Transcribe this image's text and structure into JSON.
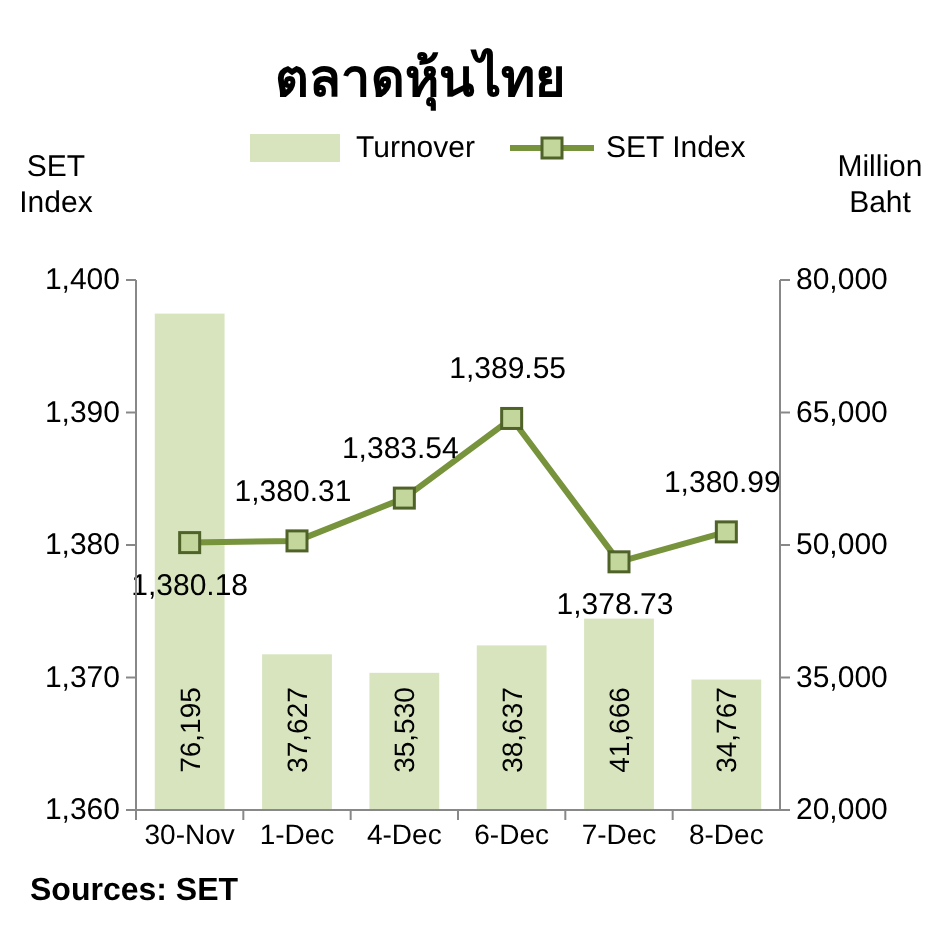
{
  "chart_data": {
    "type": "bar",
    "title": "ตลาดหุ้นไทย",
    "ylabel": "SET Index",
    "y2label": "Million Baht",
    "categories": [
      "30-Nov",
      "1-Dec",
      "4-Dec",
      "6-Dec",
      "7-Dec",
      "8-Dec"
    ],
    "series": [
      {
        "name": "Turnover",
        "axis": "y2",
        "color": "#d7e4bd",
        "values": [
          76195,
          37627,
          35530,
          38637,
          41666,
          34767
        ],
        "value_labels": [
          "76,195",
          "37,627",
          "35,530",
          "38,637",
          "41,666",
          "34,767"
        ]
      },
      {
        "name": "SET Index",
        "type": "line",
        "axis": "y",
        "color": "#77933c",
        "values": [
          1380.18,
          1380.31,
          1383.54,
          1389.55,
          1378.73,
          1380.99
        ],
        "value_labels": [
          "1,380.18",
          "1,380.31",
          "1,383.54",
          "1,389.55",
          "1,378.73",
          "1,380.99"
        ]
      }
    ],
    "ylim": [
      1360,
      1400
    ],
    "yticks": [
      {
        "value": 1360,
        "label": "1,360"
      },
      {
        "value": 1370,
        "label": "1,370"
      },
      {
        "value": 1380,
        "label": "1,380"
      },
      {
        "value": 1390,
        "label": "1,390"
      },
      {
        "value": 1400,
        "label": "1,400"
      }
    ],
    "y2lim": [
      20000,
      80000
    ],
    "y2ticks": [
      {
        "value": 20000,
        "label": "20,000"
      },
      {
        "value": 35000,
        "label": "35,000"
      },
      {
        "value": 50000,
        "label": "50,000"
      },
      {
        "value": 65000,
        "label": "65,000"
      },
      {
        "value": 80000,
        "label": "80,000"
      }
    ],
    "marker": "square",
    "legend": "top",
    "grid": false,
    "annotations": [
      "Sources: SET"
    ]
  }
}
